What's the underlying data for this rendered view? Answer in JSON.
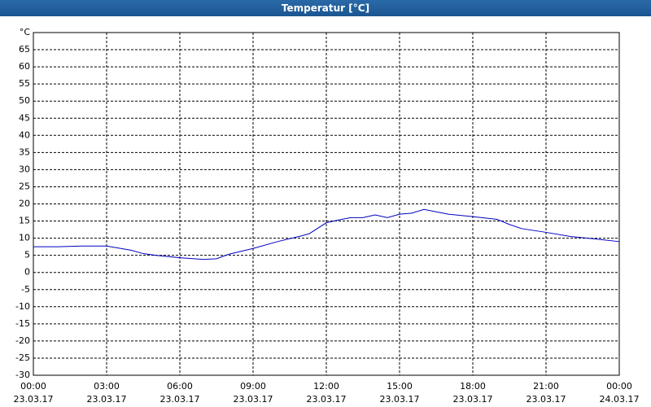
{
  "chart_data": {
    "type": "line",
    "title": "Temperatur [°C]",
    "x": [
      0,
      1,
      2,
      3,
      4,
      4.5,
      5,
      6,
      7,
      7.5,
      8,
      9,
      10,
      11,
      11.3,
      12,
      12.5,
      13,
      13.5,
      14,
      14.5,
      15,
      15.5,
      16,
      17,
      18,
      19,
      19.5,
      20,
      21,
      22,
      23,
      24
    ],
    "series": [
      {
        "name": "Temperatur",
        "color": "#0000c0",
        "values": [
          7.5,
          7.5,
          7.7,
          7.7,
          6.5,
          5.5,
          5,
          4.3,
          3.8,
          4,
          5.3,
          7,
          9,
          10.7,
          11.3,
          14.5,
          15.3,
          16,
          16,
          16.8,
          16,
          17,
          17.3,
          18.4,
          17,
          16.3,
          15.5,
          14,
          12.8,
          11.7,
          10.5,
          9.8,
          9
        ]
      }
    ],
    "xlim": [
      0,
      24
    ],
    "xticks": [
      {
        "value": 0,
        "label": "00:00\n23.03.17"
      },
      {
        "value": 3,
        "label": "03:00\n23.03.17"
      },
      {
        "value": 6,
        "label": "06:00\n23.03.17"
      },
      {
        "value": 9,
        "label": "09:00\n23.03.17"
      },
      {
        "value": 12,
        "label": "12:00\n23.03.17"
      },
      {
        "value": 15,
        "label": "15:00\n23.03.17"
      },
      {
        "value": 18,
        "label": "18:00\n23.03.17"
      },
      {
        "value": 21,
        "label": "21:00\n23.03.17"
      },
      {
        "value": 24,
        "label": "00:00\n24.03.17"
      }
    ],
    "ylim": [
      -30,
      70
    ],
    "yticks": [
      -30,
      -25,
      -20,
      -15,
      -10,
      -5,
      0,
      5,
      10,
      15,
      20,
      25,
      30,
      35,
      40,
      45,
      50,
      55,
      60,
      65,
      {
        "value": 70,
        "label": "°C"
      }
    ],
    "grid": true
  }
}
